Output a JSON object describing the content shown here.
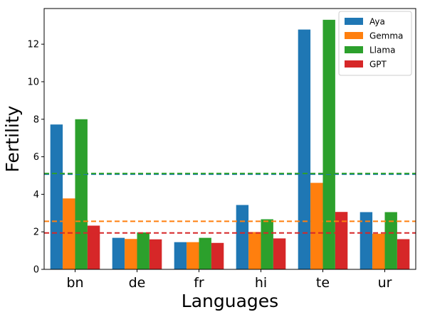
{
  "chart_data": {
    "type": "bar",
    "categories": [
      "bn",
      "de",
      "fr",
      "hi",
      "te",
      "ur"
    ],
    "series": [
      {
        "name": "Aya",
        "color": "#1f77b4",
        "values": [
          7.72,
          1.68,
          1.45,
          3.43,
          12.78,
          3.05
        ]
      },
      {
        "name": "Gemma",
        "color": "#ff7f0e",
        "values": [
          3.78,
          1.62,
          1.45,
          1.99,
          4.61,
          1.9
        ]
      },
      {
        "name": "Llama",
        "color": "#2ca02c",
        "values": [
          8.0,
          1.97,
          1.68,
          2.67,
          13.3,
          3.05
        ]
      },
      {
        "name": "GPT",
        "color": "#d62728",
        "values": [
          2.33,
          1.6,
          1.41,
          1.65,
          3.06,
          1.61
        ]
      }
    ],
    "reference_lines": [
      {
        "series": "Aya",
        "color": "#1f77b4",
        "value": 5.07
      },
      {
        "series": "Llama",
        "color": "#2ca02c",
        "value": 5.11
      },
      {
        "series": "Gemma",
        "color": "#ff7f0e",
        "value": 2.56
      },
      {
        "series": "GPT",
        "color": "#d62728",
        "value": 1.94
      }
    ],
    "title": "",
    "xlabel": "Languages",
    "ylabel": "Fertility",
    "ylim": [
      0,
      13.9
    ],
    "yticks": [
      0,
      2,
      4,
      6,
      8,
      10,
      12
    ],
    "grid": false,
    "legend_position": "top-right"
  }
}
